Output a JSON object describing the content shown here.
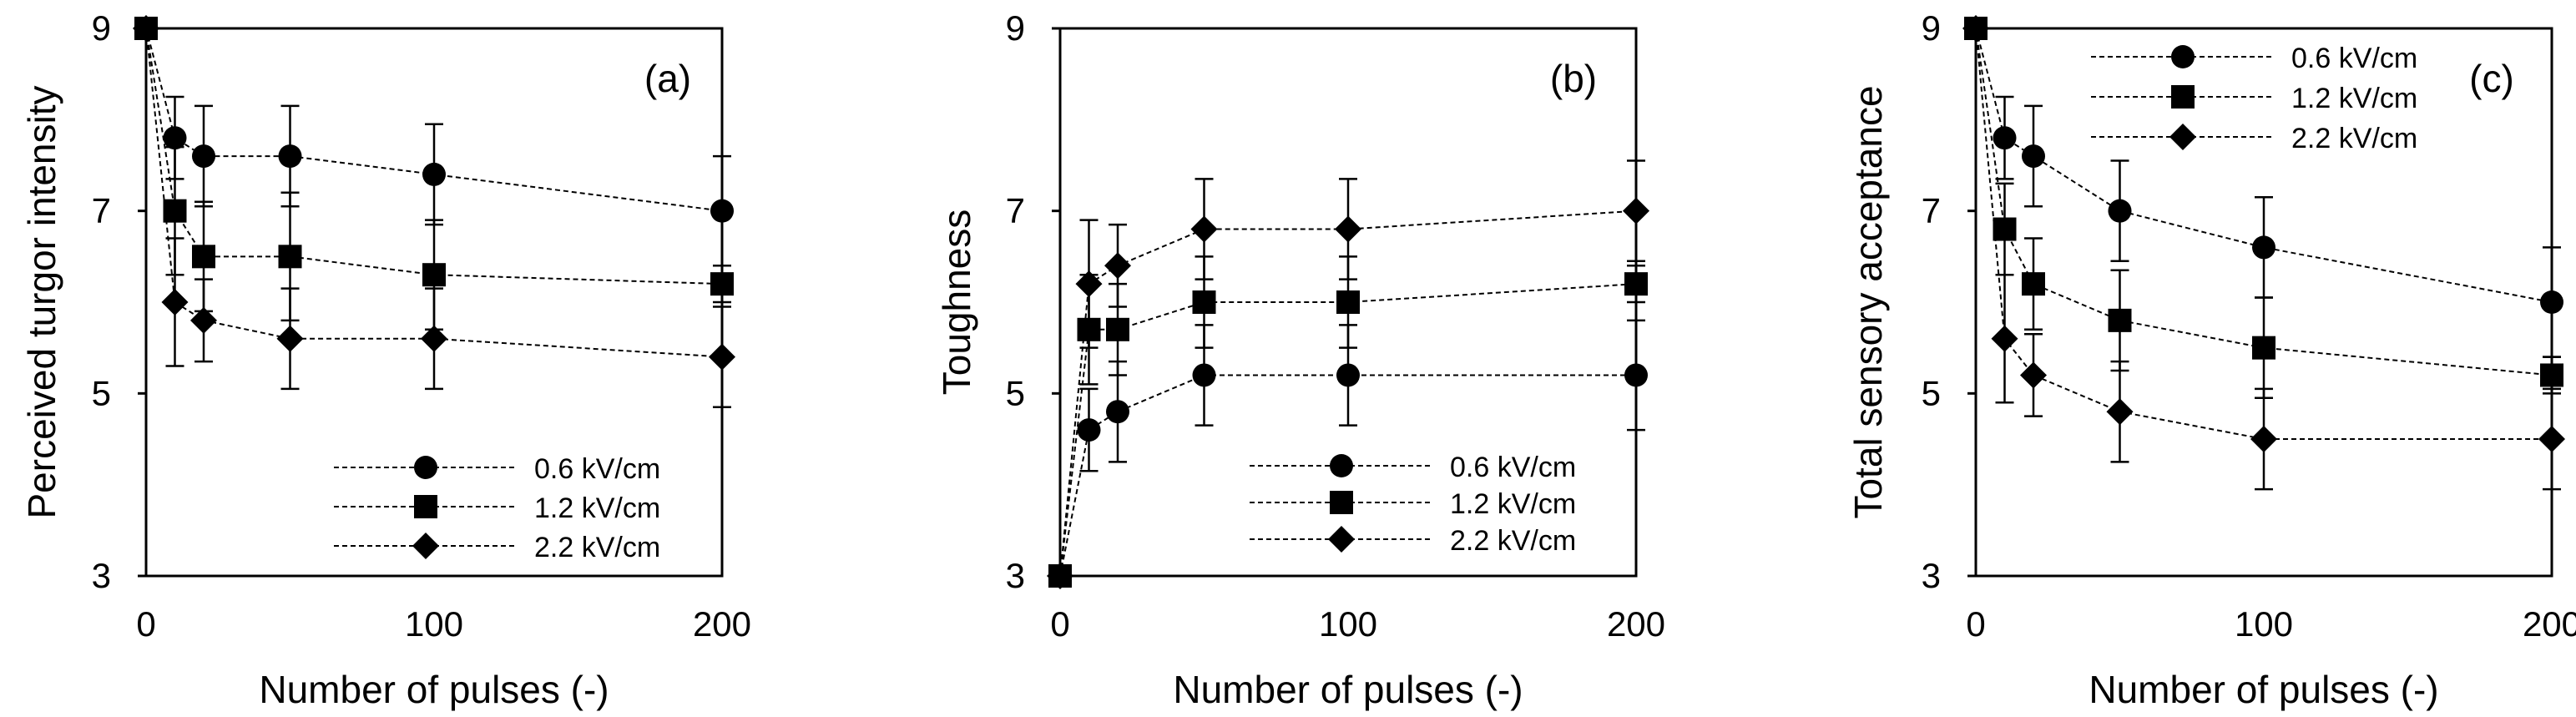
{
  "figure": {
    "x_categories": [
      0,
      10,
      20,
      50,
      100,
      200
    ],
    "x_tick_labels": [
      "0",
      "100",
      "200"
    ],
    "y_tick_labels": [
      "3",
      "5",
      "7",
      "9"
    ],
    "series_names": [
      "0.6 kV/cm",
      "1.2 kV/cm",
      "2.2 kV/cm"
    ],
    "marker_shapes": [
      "circle",
      "square",
      "diamond"
    ],
    "colors": {
      "marker": "#000000",
      "line": "#000000",
      "axis": "#000000",
      "background": "#ffffff"
    }
  },
  "chart_data": [
    {
      "type": "line",
      "panel_label": "(a)",
      "title": "",
      "xlabel": "Number of pulses (-)",
      "ylabel": "Perceived turgor intensity",
      "xlim": [
        0,
        200
      ],
      "ylim": [
        3,
        9
      ],
      "legend_position": "bottom-right",
      "x": [
        0,
        10,
        20,
        50,
        100,
        200
      ],
      "series": [
        {
          "name": "0.6 kV/cm",
          "marker": "circle",
          "values": [
            9.0,
            7.8,
            7.6,
            7.6,
            7.4,
            7.0
          ],
          "errors": [
            0.0,
            0.45,
            0.55,
            0.55,
            0.55,
            0.6
          ]
        },
        {
          "name": "1.2 kV/cm",
          "marker": "square",
          "values": [
            9.0,
            7.0,
            6.5,
            6.5,
            6.3,
            6.2
          ],
          "errors": [
            0.0,
            0.7,
            0.6,
            0.7,
            0.6,
            0.2
          ]
        },
        {
          "name": "2.2 kV/cm",
          "marker": "diamond",
          "values": [
            9.0,
            6.0,
            5.8,
            5.6,
            5.6,
            5.4
          ],
          "errors": [
            0.0,
            0.7,
            0.45,
            0.55,
            0.55,
            0.55
          ]
        }
      ]
    },
    {
      "type": "line",
      "panel_label": "(b)",
      "title": "",
      "xlabel": "Number of pulses (-)",
      "ylabel": "Toughness",
      "xlim": [
        0,
        200
      ],
      "ylim": [
        3,
        9
      ],
      "legend_position": "bottom-right",
      "x": [
        0,
        10,
        20,
        50,
        100,
        200
      ],
      "series": [
        {
          "name": "0.6 kV/cm",
          "marker": "circle",
          "values": [
            3.0,
            4.6,
            4.8,
            5.2,
            5.2,
            5.2
          ],
          "errors": [
            0.0,
            0.45,
            0.55,
            0.55,
            0.55,
            0.6
          ]
        },
        {
          "name": "1.2 kV/cm",
          "marker": "square",
          "values": [
            3.0,
            5.7,
            5.7,
            6.0,
            6.0,
            6.2
          ],
          "errors": [
            0.0,
            0.6,
            0.5,
            0.5,
            0.5,
            0.2
          ]
        },
        {
          "name": "2.2 kV/cm",
          "marker": "diamond",
          "values": [
            3.0,
            6.2,
            6.4,
            6.8,
            6.8,
            7.0
          ],
          "errors": [
            0.0,
            0.7,
            0.45,
            0.55,
            0.55,
            0.55
          ]
        }
      ]
    },
    {
      "type": "line",
      "panel_label": "(c)",
      "title": "",
      "xlabel": "Number of pulses (-)",
      "ylabel": "Total sensory acceptance",
      "xlim": [
        0,
        200
      ],
      "ylim": [
        3,
        9
      ],
      "legend_position": "top-center",
      "x": [
        0,
        10,
        20,
        50,
        100,
        200
      ],
      "series": [
        {
          "name": "0.6 kV/cm",
          "marker": "circle",
          "values": [
            9.0,
            7.8,
            7.6,
            7.0,
            6.6,
            6.0
          ],
          "errors": [
            0.0,
            0.45,
            0.55,
            0.55,
            0.55,
            0.6
          ]
        },
        {
          "name": "1.2 kV/cm",
          "marker": "square",
          "values": [
            9.0,
            6.8,
            6.2,
            5.8,
            5.5,
            5.2
          ],
          "errors": [
            0.0,
            0.5,
            0.5,
            0.55,
            0.55,
            0.2
          ]
        },
        {
          "name": "2.2 kV/cm",
          "marker": "diamond",
          "values": [
            9.0,
            5.6,
            5.2,
            4.8,
            4.5,
            4.5
          ],
          "errors": [
            0.0,
            0.7,
            0.45,
            0.55,
            0.55,
            0.55
          ]
        }
      ]
    }
  ]
}
